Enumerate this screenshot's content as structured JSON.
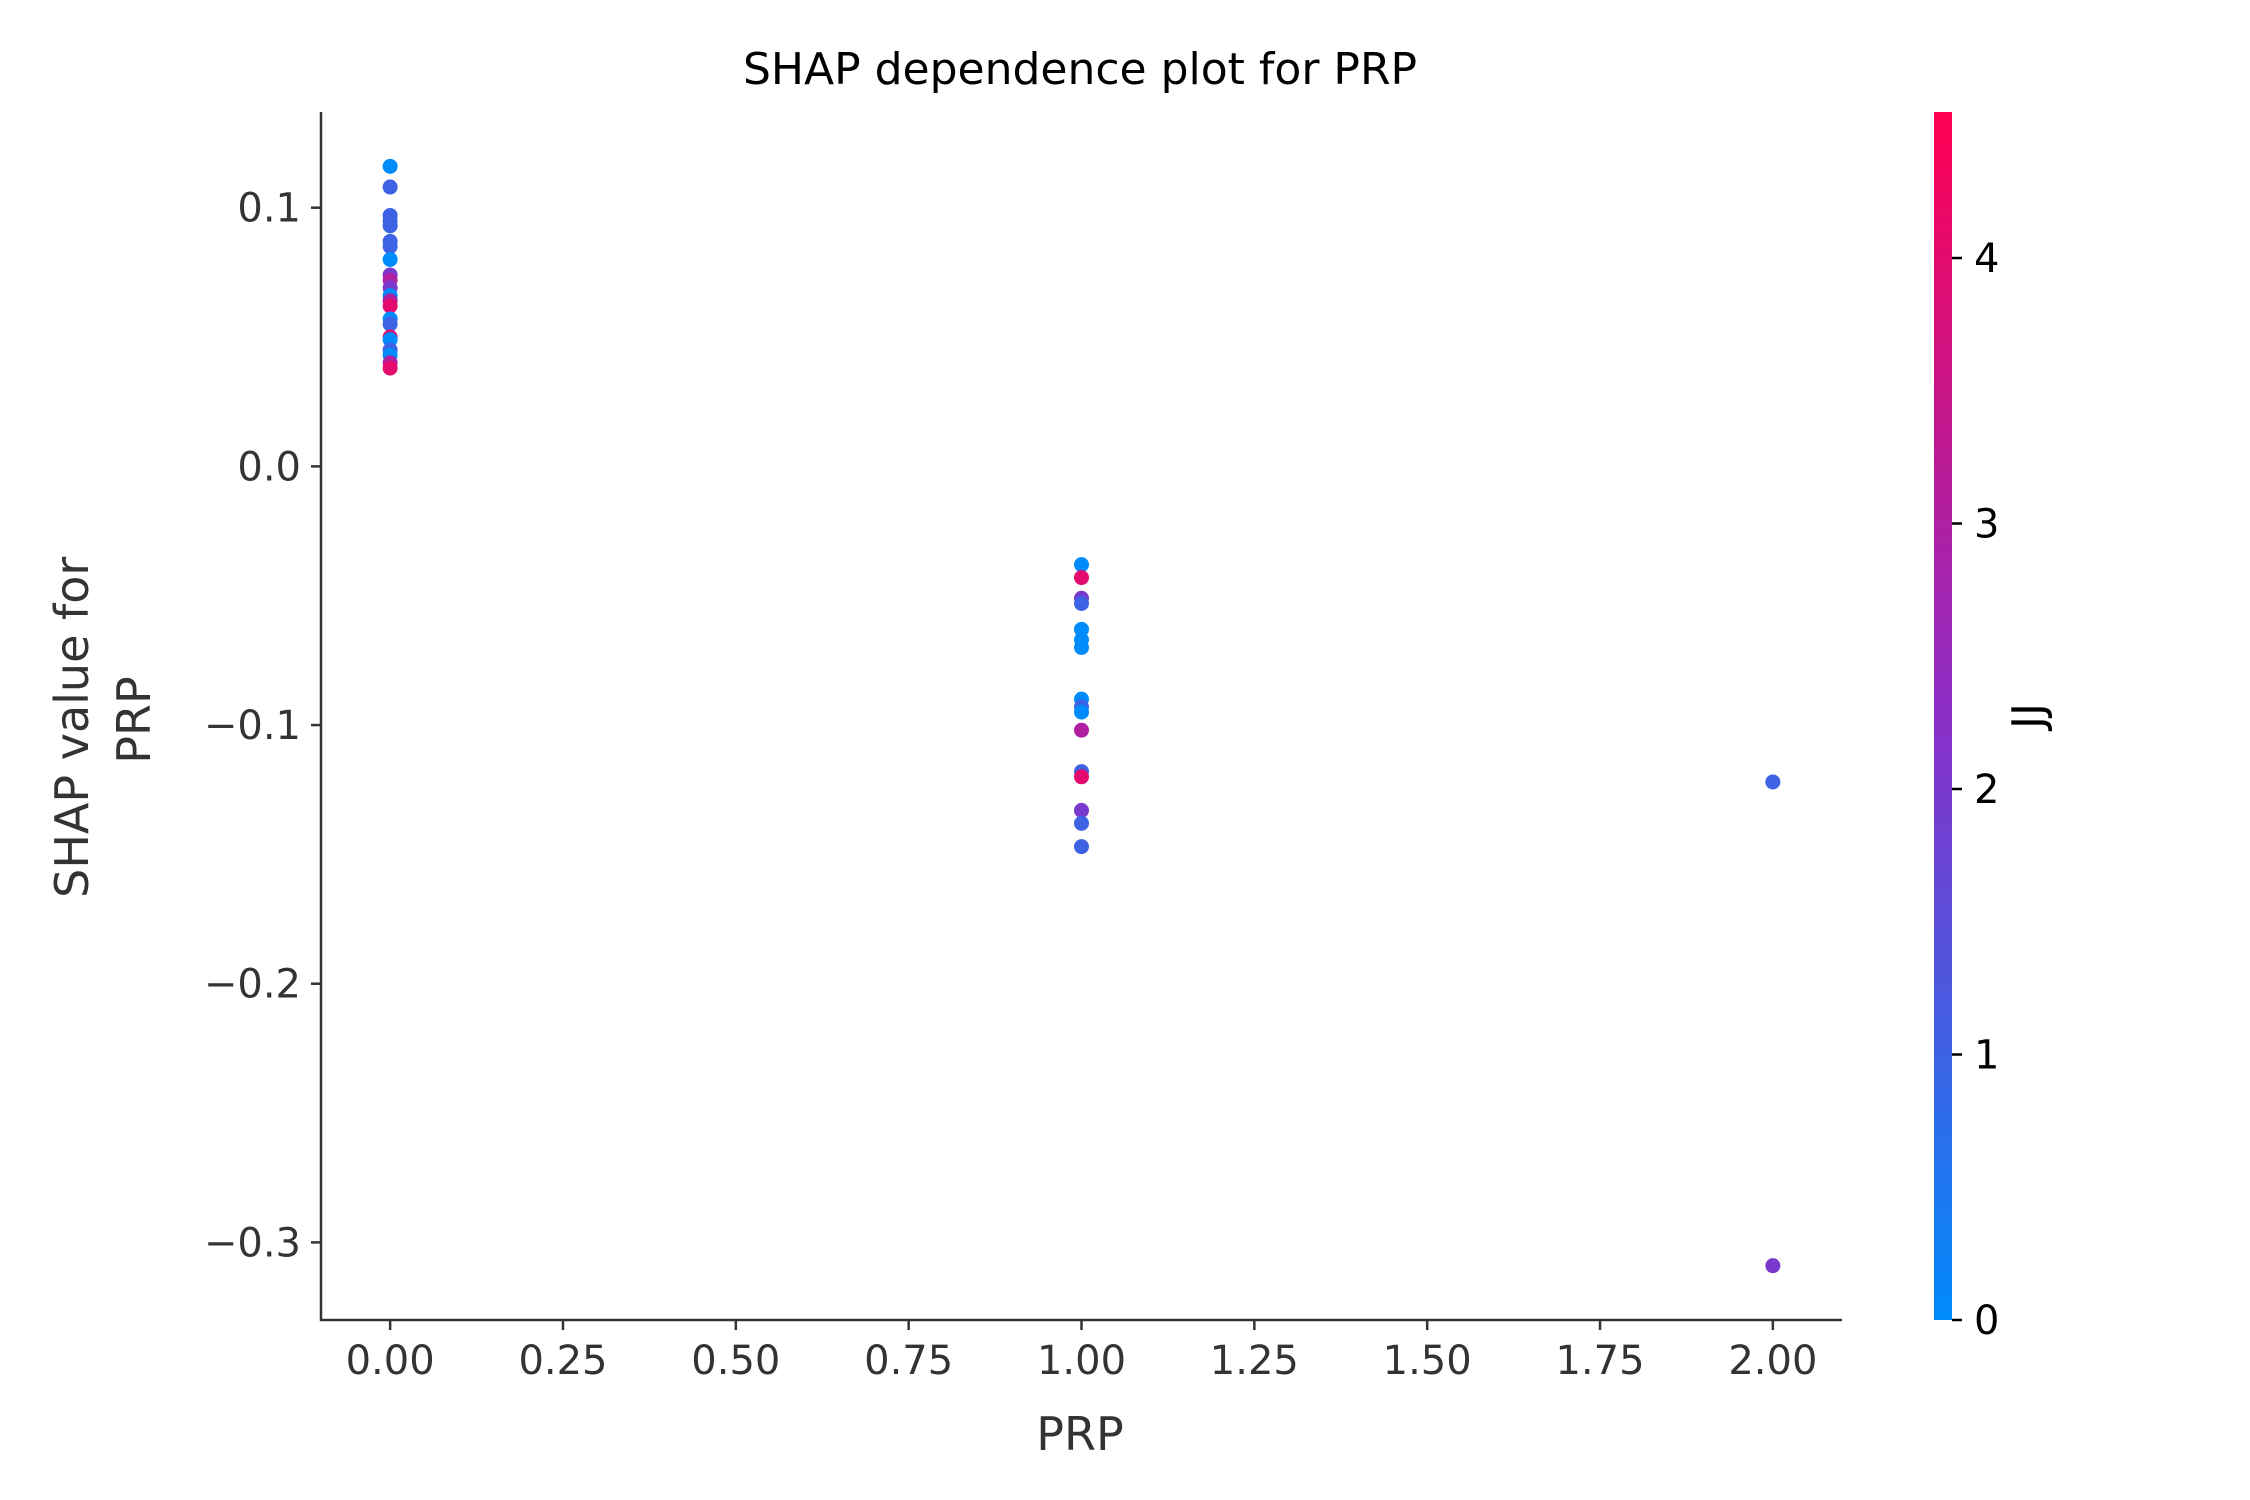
{
  "chart_data": {
    "type": "scatter",
    "title": "SHAP dependence plot for PRP",
    "xlabel": "PRP",
    "ylabel_lines": [
      "SHAP value for",
      "PRP"
    ],
    "xlim": [
      -0.1,
      2.1
    ],
    "ylim": [
      -0.33,
      0.137
    ],
    "x_ticks": [
      0.0,
      0.25,
      0.5,
      0.75,
      1.0,
      1.25,
      1.5,
      1.75,
      2.0
    ],
    "x_tick_labels": [
      "0.00",
      "0.25",
      "0.50",
      "0.75",
      "1.00",
      "1.25",
      "1.50",
      "1.75",
      "2.00"
    ],
    "y_ticks": [
      0.1,
      0.0,
      -0.1,
      -0.2,
      -0.3
    ],
    "y_tick_labels": [
      "0.1",
      "0.0",
      "−0.1",
      "−0.2",
      "−0.3"
    ],
    "grid": false,
    "colorbar": {
      "label": "JJ",
      "min": 0,
      "max": 4.55,
      "ticks": [
        0,
        1,
        2,
        3,
        4
      ],
      "tick_labels": [
        "0",
        "1",
        "2",
        "3",
        "4"
      ],
      "color_low": "#008bfb",
      "color_mid": "#8a2ec7",
      "color_high": "#ff0052"
    },
    "points": [
      {
        "x": 0,
        "y": 0.116,
        "c": 0
      },
      {
        "x": 0,
        "y": 0.108,
        "c": 1
      },
      {
        "x": 0,
        "y": 0.097,
        "c": 1
      },
      {
        "x": 0,
        "y": 0.095,
        "c": 1
      },
      {
        "x": 0,
        "y": 0.093,
        "c": 1
      },
      {
        "x": 0,
        "y": 0.087,
        "c": 1
      },
      {
        "x": 0,
        "y": 0.085,
        "c": 1
      },
      {
        "x": 0,
        "y": 0.08,
        "c": 0
      },
      {
        "x": 0,
        "y": 0.074,
        "c": 2
      },
      {
        "x": 0,
        "y": 0.072,
        "c": 3
      },
      {
        "x": 0,
        "y": 0.069,
        "c": 2
      },
      {
        "x": 0,
        "y": 0.066,
        "c": 0
      },
      {
        "x": 0,
        "y": 0.064,
        "c": 3
      },
      {
        "x": 0,
        "y": 0.062,
        "c": 4
      },
      {
        "x": 0,
        "y": 0.057,
        "c": 0
      },
      {
        "x": 0,
        "y": 0.055,
        "c": 1
      },
      {
        "x": 0,
        "y": 0.05,
        "c": 4
      },
      {
        "x": 0,
        "y": 0.049,
        "c": 0
      },
      {
        "x": 0,
        "y": 0.045,
        "c": 1
      },
      {
        "x": 0,
        "y": 0.043,
        "c": 0
      },
      {
        "x": 0,
        "y": 0.04,
        "c": 3
      },
      {
        "x": 0,
        "y": 0.038,
        "c": 4
      },
      {
        "x": 1,
        "y": -0.038,
        "c": 0
      },
      {
        "x": 1,
        "y": -0.043,
        "c": 4
      },
      {
        "x": 1,
        "y": -0.051,
        "c": 2
      },
      {
        "x": 1,
        "y": -0.053,
        "c": 1
      },
      {
        "x": 1,
        "y": -0.063,
        "c": 0
      },
      {
        "x": 1,
        "y": -0.067,
        "c": 0
      },
      {
        "x": 1,
        "y": -0.07,
        "c": 0
      },
      {
        "x": 1,
        "y": -0.09,
        "c": 0
      },
      {
        "x": 1,
        "y": -0.093,
        "c": 1
      },
      {
        "x": 1,
        "y": -0.095,
        "c": 0
      },
      {
        "x": 1,
        "y": -0.102,
        "c": 3
      },
      {
        "x": 1,
        "y": -0.118,
        "c": 1
      },
      {
        "x": 1,
        "y": -0.12,
        "c": 4
      },
      {
        "x": 1,
        "y": -0.133,
        "c": 2
      },
      {
        "x": 1,
        "y": -0.138,
        "c": 1
      },
      {
        "x": 1,
        "y": -0.147,
        "c": 1
      },
      {
        "x": 2,
        "y": -0.122,
        "c": 1
      },
      {
        "x": 2,
        "y": -0.309,
        "c": 2
      }
    ]
  }
}
